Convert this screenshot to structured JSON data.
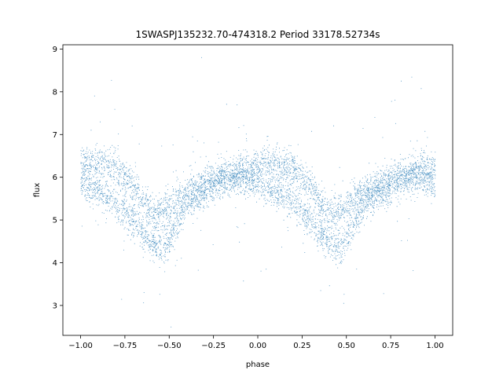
{
  "chart_data": {
    "type": "scatter",
    "title": "1SWASPJ135232.70-474318.2 Period 33178.52734s",
    "xlabel": "phase",
    "ylabel": "flux",
    "xlim": [
      -1.1,
      1.1
    ],
    "ylim": [
      2.3,
      9.1
    ],
    "xticks": [
      -1.0,
      -0.75,
      -0.5,
      -0.25,
      0.0,
      0.25,
      0.5,
      0.75,
      1.0
    ],
    "xtick_labels": [
      "−1.00",
      "−0.75",
      "−0.50",
      "−0.25",
      "0.00",
      "0.25",
      "0.50",
      "0.75",
      "1.00"
    ],
    "yticks": [
      3,
      4,
      5,
      6,
      7,
      8,
      9
    ],
    "ytick_labels": [
      "3",
      "4",
      "5",
      "6",
      "7",
      "8",
      "9"
    ],
    "grid": false,
    "marker_color": "#1f77b4",
    "series": [
      {
        "profile": {
          "phase": [
            -1.0,
            -0.9,
            -0.8,
            -0.7,
            -0.65,
            -0.6,
            -0.55,
            -0.5,
            -0.45,
            -0.4,
            -0.3,
            -0.2,
            -0.1,
            0.0,
            0.1,
            0.2,
            0.3,
            0.35,
            0.4,
            0.45,
            0.5,
            0.55,
            0.6,
            0.7,
            0.8,
            0.9,
            1.0
          ],
          "flux_upper_branch": [
            6.3,
            6.35,
            6.2,
            5.8,
            5.4,
            5.2,
            5.15,
            5.3,
            5.5,
            5.65,
            5.85,
            6.0,
            6.15,
            6.3,
            6.35,
            6.2,
            5.8,
            5.4,
            5.2,
            5.15,
            5.3,
            5.5,
            5.65,
            5.85,
            6.0,
            6.15,
            6.3
          ],
          "flux_lower_branch": [
            5.8,
            5.7,
            5.4,
            5.0,
            4.7,
            4.5,
            4.35,
            4.5,
            5.0,
            5.4,
            5.7,
            5.95,
            6.0,
            5.85,
            5.7,
            5.4,
            5.0,
            4.7,
            4.5,
            4.35,
            4.5,
            5.0,
            5.4,
            5.7,
            5.95,
            6.0,
            5.85
          ]
        }
      }
    ]
  }
}
